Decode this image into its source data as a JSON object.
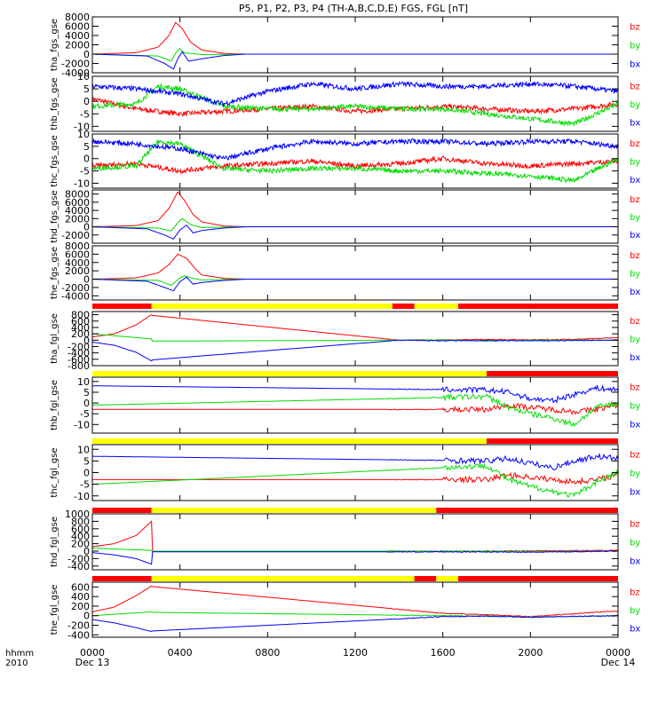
{
  "title": "P5, P1, P2, P3, P4 (TH-A,B,C,D,E) FGS, FGL [nT]",
  "colors": {
    "bx": "#0000ff",
    "by": "#00dd00",
    "bz": "#ff0000",
    "bar_red": "#ff0000",
    "bar_yellow": "#ffff00",
    "axis": "#000000"
  },
  "time_axis": {
    "row1_label": "hhmm",
    "row2_label": "2010",
    "ticks": [
      {
        "hour": 0,
        "label": "0000",
        "date": "Dec 13"
      },
      {
        "hour": 4,
        "label": "0400",
        "date": ""
      },
      {
        "hour": 8,
        "label": "0800",
        "date": ""
      },
      {
        "hour": 12,
        "label": "1200",
        "date": ""
      },
      {
        "hour": 16,
        "label": "1600",
        "date": ""
      },
      {
        "hour": 20,
        "label": "2000",
        "date": ""
      },
      {
        "hour": 24,
        "label": "0000",
        "date": "Dec 14"
      }
    ],
    "range_hours": [
      0,
      24
    ]
  },
  "chart_data": [
    {
      "type": "line",
      "ylabel": "tha_fgs_gse",
      "ylim": [
        -4000,
        8000
      ],
      "yticks": [
        -4000,
        -2000,
        0,
        2000,
        4000,
        6000,
        8000
      ],
      "legend": [
        "bz",
        "by",
        "bx"
      ],
      "series": [
        {
          "name": "bz",
          "x": [
            0,
            2,
            3,
            3.5,
            3.8,
            4.1,
            4.5,
            5,
            6,
            7,
            24
          ],
          "y": [
            0,
            300,
            1500,
            4000,
            6800,
            5500,
            2500,
            900,
            150,
            0,
            0
          ]
        },
        {
          "name": "by",
          "x": [
            0,
            3,
            3.6,
            3.8,
            4.0,
            4.2,
            5,
            7,
            24
          ],
          "y": [
            0,
            -400,
            -1500,
            200,
            1200,
            300,
            -100,
            0,
            0
          ]
        },
        {
          "name": "bx",
          "x": [
            0,
            2.5,
            3.3,
            3.7,
            3.9,
            4.1,
            4.4,
            5,
            6,
            7,
            24
          ],
          "y": [
            0,
            -400,
            -2000,
            -3200,
            -1000,
            500,
            -1500,
            -1000,
            -300,
            0,
            0
          ]
        }
      ]
    },
    {
      "type": "line",
      "ylabel": "thb_fgs_gse",
      "ylim": [
        -12,
        10
      ],
      "yticks": [
        -10,
        -5,
        0,
        5,
        10
      ],
      "legend": [
        "bz",
        "by",
        "bx"
      ],
      "series": [
        {
          "name": "bz",
          "x": [
            0,
            2,
            4,
            6,
            8,
            10,
            12,
            14,
            16,
            18,
            20,
            22,
            24
          ],
          "y": [
            1,
            -3,
            -5,
            -4,
            -3,
            -2,
            -4,
            -3,
            -2,
            -3,
            -4,
            -3,
            -1
          ]
        },
        {
          "name": "by",
          "x": [
            0,
            2,
            3,
            4,
            6,
            8,
            10,
            12,
            14,
            16,
            18,
            20,
            22,
            24
          ],
          "y": [
            -2,
            -1,
            6,
            5,
            -2,
            -3,
            -3,
            -2,
            -3,
            -3,
            -5,
            -7,
            -9,
            -1
          ]
        },
        {
          "name": "bx",
          "x": [
            0,
            2,
            4,
            6,
            8,
            10,
            12,
            14,
            16,
            18,
            20,
            22,
            24
          ],
          "y": [
            6,
            5,
            3,
            -1,
            4,
            7,
            5,
            7,
            6,
            6,
            7,
            6,
            4
          ]
        }
      ]
    },
    {
      "type": "line",
      "ylabel": "thc_fgs_gse",
      "ylim": [
        -12,
        10
      ],
      "yticks": [
        -10,
        -5,
        0,
        5,
        10
      ],
      "legend": [
        "bz",
        "by",
        "bx"
      ],
      "series": [
        {
          "name": "bz",
          "x": [
            0,
            2,
            4,
            6,
            8,
            10,
            12,
            14,
            16,
            18,
            20,
            22,
            24
          ],
          "y": [
            -3,
            -2,
            -5,
            -3,
            -2,
            -1,
            -3,
            -2,
            0,
            -2,
            -3,
            -2,
            -1
          ]
        },
        {
          "name": "by",
          "x": [
            0,
            2,
            3,
            4,
            6,
            8,
            10,
            12,
            14,
            16,
            18,
            20,
            22,
            24
          ],
          "y": [
            -4,
            -3,
            7,
            6,
            -4,
            -5,
            -4,
            -4,
            -5,
            -5,
            -6,
            -7,
            -9,
            0
          ]
        },
        {
          "name": "bx",
          "x": [
            0,
            2,
            4,
            6,
            8,
            10,
            12,
            14,
            16,
            18,
            20,
            22,
            24
          ],
          "y": [
            7,
            6,
            4,
            0,
            4,
            7,
            6,
            7,
            7,
            6,
            7,
            7,
            5
          ]
        }
      ]
    },
    {
      "type": "line",
      "ylabel": "thd_fgs_gse",
      "ylim": [
        -4000,
        9000
      ],
      "yticks": [
        -2000,
        0,
        2000,
        4000,
        6000,
        8000
      ],
      "legend": [
        "bz",
        "by",
        "bx"
      ],
      "series": [
        {
          "name": "bz",
          "x": [
            0,
            2,
            3,
            3.5,
            3.9,
            4.2,
            4.6,
            5,
            6,
            7,
            24
          ],
          "y": [
            0,
            300,
            1500,
            4500,
            8500,
            6500,
            3000,
            1200,
            200,
            0,
            0
          ]
        },
        {
          "name": "by",
          "x": [
            0,
            3,
            3.6,
            3.9,
            4.1,
            4.5,
            5,
            7,
            24
          ],
          "y": [
            0,
            -300,
            -1000,
            1000,
            2000,
            500,
            -200,
            0,
            0
          ]
        },
        {
          "name": "bx",
          "x": [
            0,
            2.5,
            3.3,
            3.7,
            4.0,
            4.3,
            4.6,
            5,
            6,
            7,
            24
          ],
          "y": [
            0,
            -500,
            -2000,
            -3000,
            -800,
            400,
            -1500,
            -900,
            -300,
            0,
            0
          ]
        }
      ]
    },
    {
      "type": "line",
      "ylabel": "the_fgs_gse",
      "ylim": [
        -5000,
        8000
      ],
      "yticks": [
        -4000,
        -2000,
        0,
        2000,
        4000,
        6000,
        8000
      ],
      "legend": [
        "bz",
        "by",
        "bx"
      ],
      "series": [
        {
          "name": "bz",
          "x": [
            0,
            2,
            3,
            3.5,
            3.9,
            4.3,
            4.7,
            5,
            6,
            7,
            24
          ],
          "y": [
            0,
            300,
            1500,
            3500,
            6000,
            5000,
            2500,
            1000,
            200,
            0,
            0
          ]
        },
        {
          "name": "by",
          "x": [
            0,
            3,
            3.6,
            4.0,
            4.2,
            4.6,
            5,
            7,
            24
          ],
          "y": [
            0,
            -300,
            -1500,
            300,
            800,
            200,
            -200,
            0,
            0
          ]
        },
        {
          "name": "bx",
          "x": [
            0,
            2.5,
            3.3,
            3.7,
            4.0,
            4.3,
            4.6,
            5,
            6,
            7,
            24
          ],
          "y": [
            0,
            -500,
            -2000,
            -2800,
            -600,
            500,
            -1200,
            -800,
            -300,
            0,
            0
          ]
        }
      ]
    },
    {
      "type": "line",
      "ylabel": "tha_fgl_gse",
      "ylim": [
        -800,
        900
      ],
      "yticks": [
        -800,
        -600,
        -400,
        -200,
        0,
        200,
        400,
        600,
        800
      ],
      "legend": [
        "bz",
        "by",
        "bx"
      ],
      "mode_bar": [
        [
          0,
          2.7,
          "red"
        ],
        [
          2.7,
          13.7,
          "yellow"
        ],
        [
          13.7,
          14.7,
          "red"
        ],
        [
          14.7,
          16.7,
          "yellow"
        ],
        [
          16.7,
          24,
          "red"
        ]
      ],
      "series": [
        {
          "name": "bz",
          "x": [
            0,
            1,
            2,
            2.7,
            2.71,
            14,
            16,
            18,
            20,
            22,
            24
          ],
          "y": [
            100,
            200,
            480,
            800,
            780,
            0,
            10,
            20,
            10,
            30,
            80
          ]
        },
        {
          "name": "by",
          "x": [
            0,
            2.7,
            2.71,
            14,
            16,
            18,
            20,
            24
          ],
          "y": [
            200,
            40,
            -30,
            0,
            10,
            -30,
            0,
            0
          ]
        },
        {
          "name": "bx",
          "x": [
            0,
            1,
            2,
            2.7,
            2.71,
            14,
            16,
            18,
            20,
            24
          ],
          "y": [
            -60,
            -160,
            -380,
            -650,
            -620,
            0,
            -20,
            -10,
            -20,
            0
          ]
        }
      ]
    },
    {
      "type": "line",
      "ylabel": "thb_fgl_gse",
      "ylim": [
        -14,
        12
      ],
      "yticks": [
        -10,
        -5,
        0,
        5,
        10
      ],
      "legend": [
        "bz",
        "by",
        "bx"
      ],
      "mode_bar": [
        [
          0,
          18,
          "yellow"
        ],
        [
          18,
          24,
          "red"
        ]
      ],
      "series": [
        {
          "name": "bz",
          "x": [
            0,
            18,
            19,
            20,
            21,
            22,
            23,
            24
          ],
          "y": [
            -3,
            -3,
            -1,
            -2,
            -3,
            -4,
            -3,
            -1
          ]
        },
        {
          "name": "by",
          "x": [
            0,
            18,
            19,
            20,
            21,
            22,
            23,
            24
          ],
          "y": [
            -1,
            3,
            -2,
            -5,
            -7,
            -10,
            -2,
            0
          ]
        },
        {
          "name": "bx",
          "x": [
            0,
            18,
            19,
            20,
            21,
            22,
            23,
            24
          ],
          "y": [
            8,
            6,
            5,
            2,
            1,
            4,
            7,
            6
          ]
        }
      ]
    },
    {
      "type": "line",
      "ylabel": "thc_fgl_gse",
      "ylim": [
        -12,
        12
      ],
      "yticks": [
        -10,
        -5,
        0,
        5,
        10
      ],
      "legend": [
        "bz",
        "by",
        "bx"
      ],
      "mode_bar": [
        [
          0,
          18,
          "yellow"
        ],
        [
          18,
          24,
          "red"
        ]
      ],
      "series": [
        {
          "name": "bz",
          "x": [
            0,
            18,
            19,
            20,
            21,
            22,
            23,
            24
          ],
          "y": [
            -3,
            -3,
            -1,
            -2,
            -3,
            -4,
            -3,
            -1
          ]
        },
        {
          "name": "by",
          "x": [
            0,
            18,
            19,
            20,
            21,
            22,
            23,
            24
          ],
          "y": [
            -5,
            3,
            -3,
            -6,
            -8,
            -10,
            -4,
            0
          ]
        },
        {
          "name": "bx",
          "x": [
            0,
            18,
            19,
            20,
            21,
            22,
            23,
            24
          ],
          "y": [
            7,
            5,
            6,
            4,
            2,
            5,
            7,
            6
          ]
        }
      ]
    },
    {
      "type": "line",
      "ylabel": "thd_fgl_gse",
      "ylim": [
        -500,
        1000
      ],
      "yticks": [
        -400,
        -200,
        0,
        200,
        400,
        600,
        800,
        1000
      ],
      "legend": [
        "bz",
        "by",
        "bx"
      ],
      "mode_bar": [
        [
          0,
          2.7,
          "red"
        ],
        [
          2.7,
          15.7,
          "yellow"
        ],
        [
          15.7,
          24,
          "red"
        ]
      ],
      "series": [
        {
          "name": "bz",
          "x": [
            0,
            1,
            2,
            2.7,
            2.71,
            18,
            20,
            24
          ],
          "y": [
            120,
            200,
            420,
            800,
            0,
            0,
            10,
            20
          ]
        },
        {
          "name": "by",
          "x": [
            0,
            2.7,
            2.71,
            18,
            20,
            24
          ],
          "y": [
            80,
            20,
            0,
            0,
            -10,
            0
          ]
        },
        {
          "name": "bx",
          "x": [
            0,
            1,
            2,
            2.7,
            2.71,
            18,
            20,
            24
          ],
          "y": [
            -40,
            -100,
            -200,
            -350,
            -20,
            -20,
            -30,
            0
          ]
        }
      ]
    },
    {
      "type": "line",
      "ylabel": "the_fgl_gse",
      "ylim": [
        -450,
        700
      ],
      "yticks": [
        -400,
        -200,
        0,
        200,
        400,
        600
      ],
      "legend": [
        "bz",
        "by",
        "bx"
      ],
      "mode_bar": [
        [
          0,
          2.7,
          "red"
        ],
        [
          2.7,
          14.7,
          "yellow"
        ],
        [
          14.7,
          15.7,
          "red"
        ],
        [
          15.7,
          16.7,
          "yellow"
        ],
        [
          16.7,
          24,
          "red"
        ]
      ],
      "series": [
        {
          "name": "bz",
          "x": [
            0,
            1,
            2,
            2.7,
            2.71,
            16,
            18,
            20,
            22,
            24
          ],
          "y": [
            80,
            180,
            420,
            620,
            610,
            50,
            20,
            -20,
            40,
            100
          ]
        },
        {
          "name": "by",
          "x": [
            0,
            2.7,
            2.71,
            16,
            18,
            20,
            24
          ],
          "y": [
            0,
            80,
            70,
            0,
            -10,
            -30,
            0
          ]
        },
        {
          "name": "bx",
          "x": [
            0,
            1,
            2,
            2.7,
            2.71,
            16,
            18,
            20,
            24
          ],
          "y": [
            -80,
            -150,
            -250,
            -330,
            -320,
            -20,
            -10,
            -30,
            0
          ]
        }
      ]
    }
  ]
}
